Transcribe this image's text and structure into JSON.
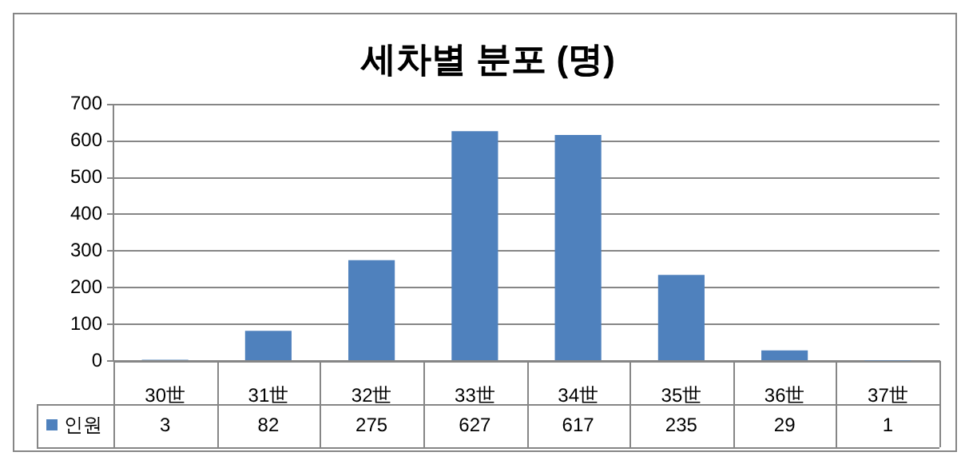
{
  "chart_data": {
    "type": "bar",
    "title": "세차별 분포 (명)",
    "categories": [
      "30世",
      "31世",
      "32世",
      "33世",
      "34世",
      "35世",
      "36世",
      "37世"
    ],
    "series": [
      {
        "name": "인원",
        "color": "#4f81bd",
        "values": [
          3,
          82,
          275,
          627,
          617,
          235,
          29,
          1
        ]
      }
    ],
    "ylim": [
      0,
      700
    ],
    "yticks": [
      0,
      100,
      200,
      300,
      400,
      500,
      600,
      700
    ],
    "grid": "y",
    "legend": "bottom",
    "data_labels": true
  }
}
